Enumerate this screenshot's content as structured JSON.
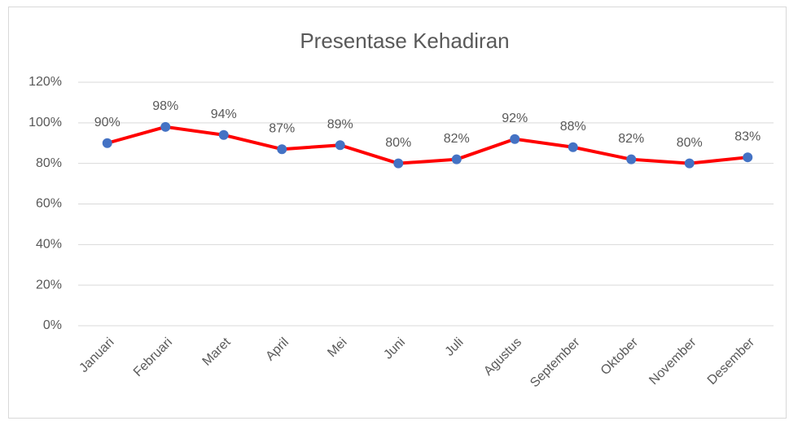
{
  "chart_data": {
    "type": "line",
    "title": "Presentase Kehadiran",
    "categories": [
      "Januari",
      "Februari",
      "Maret",
      "April",
      "Mei",
      "Juni",
      "Juli",
      "Agustus",
      "September",
      "Oktober",
      "November",
      "Desember"
    ],
    "series": [
      {
        "color": "#ff0000",
        "marker_color": "#4472c4",
        "values": [
          90,
          98,
          94,
          87,
          89,
          80,
          82,
          92,
          88,
          82,
          80,
          83
        ],
        "value_labels": [
          "90%",
          "98%",
          "94%",
          "87%",
          "89%",
          "80%",
          "82%",
          "92%",
          "88%",
          "82%",
          "80%",
          "83%"
        ]
      }
    ],
    "ylim": [
      0,
      120
    ],
    "yticks": [
      {
        "value": 0,
        "label": "0%"
      },
      {
        "value": 20,
        "label": "20%"
      },
      {
        "value": 40,
        "label": "40%"
      },
      {
        "value": 60,
        "label": "60%"
      },
      {
        "value": 80,
        "label": "80%"
      },
      {
        "value": 100,
        "label": "100%"
      },
      {
        "value": 120,
        "label": "120%"
      }
    ],
    "grid": true
  }
}
